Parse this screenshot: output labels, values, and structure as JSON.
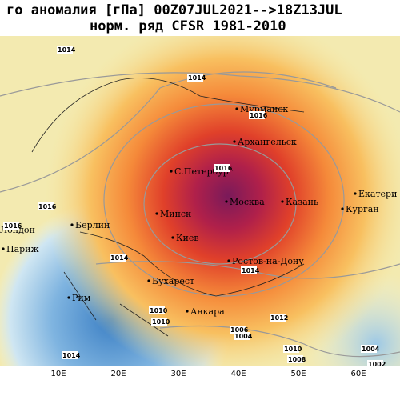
{
  "title": {
    "line1": "го аномалия [гПа]  00Z07JUL2021-->18Z13JUL",
    "line2": "норм. ряд CFSR 1981-2010"
  },
  "cities": [
    "Мурманск",
    "Архангельск",
    "С.Петербург",
    "Москва",
    "Казань",
    "Екатери",
    "Курган",
    "Минск",
    "Берлин",
    "Лондон",
    "Париж",
    "Киев",
    "Ростов-на-Дону",
    "Бухарест",
    "Рим",
    "Анкара"
  ],
  "isobar_labels": [
    "1014",
    "1014",
    "1016",
    "1016",
    "1016",
    "1016",
    "1014",
    "1014",
    "1012",
    "1006",
    "1004",
    "1010",
    "1008",
    "1014",
    "1004",
    "1002",
    "1010",
    "1010"
  ],
  "longitude_labels": [
    "10E",
    "20E",
    "30E",
    "40E",
    "50E",
    "60E"
  ]
}
